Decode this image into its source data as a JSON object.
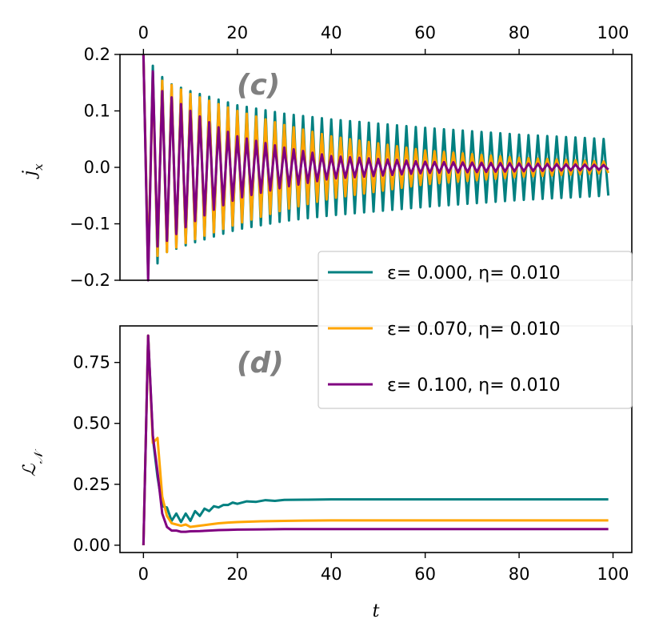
{
  "chart_data": [
    {
      "type": "line",
      "panel_label": "(c)",
      "xlabel": "",
      "ylabel": "j_x",
      "xlim": [
        -5,
        104
      ],
      "ylim": [
        -0.2,
        0.2
      ],
      "xticks": [
        0,
        20,
        40,
        60,
        80,
        100
      ],
      "xtick_labels_top": [
        "0",
        "20",
        "40",
        "60",
        "80",
        "100"
      ],
      "yticks": [
        -0.2,
        -0.1,
        0.0,
        0.1,
        0.2
      ],
      "ytick_labels": [
        "−0.2",
        "−0.1",
        "0.0",
        "0.1",
        "0.2"
      ],
      "grid": false,
      "oscillation_period": 2,
      "x_range": [
        0,
        99
      ],
      "series": [
        {
          "name": "ε=  0.000, η= 0.010",
          "color": "#008080",
          "envelope_t": [
            0,
            2,
            5,
            10,
            20,
            30,
            40,
            60,
            80,
            99
          ],
          "envelope_amplitude": [
            0.2,
            0.18,
            0.15,
            0.135,
            0.11,
            0.095,
            0.085,
            0.07,
            0.058,
            0.05
          ]
        },
        {
          "name": "ε=  0.070, η= 0.010",
          "color": "#FFA500",
          "envelope_t": [
            0,
            2,
            5,
            10,
            20,
            30,
            40,
            60,
            80,
            99
          ],
          "envelope_amplitude": [
            0.2,
            0.16,
            0.15,
            0.13,
            0.1,
            0.075,
            0.055,
            0.03,
            0.017,
            0.01
          ]
        },
        {
          "name": "ε=  0.100, η= 0.010",
          "color": "#800080",
          "envelope_t": [
            0,
            1,
            3,
            5,
            10,
            15,
            20,
            30,
            40,
            60,
            80,
            99
          ],
          "envelope_amplitude": [
            0.2,
            0.2,
            0.14,
            0.13,
            0.1,
            0.075,
            0.055,
            0.035,
            0.02,
            0.01,
            0.007,
            0.004
          ]
        }
      ]
    },
    {
      "type": "line",
      "panel_label": "(d)",
      "xlabel": "t",
      "ylabel": "L_N",
      "xlim": [
        -5,
        104
      ],
      "ylim": [
        -0.03,
        0.9
      ],
      "xticks": [
        0,
        20,
        40,
        60,
        80,
        100
      ],
      "xtick_labels": [
        "0",
        "20",
        "40",
        "60",
        "80",
        "100"
      ],
      "yticks": [
        0.0,
        0.25,
        0.5,
        0.75
      ],
      "ytick_labels": [
        "0.00",
        "0.25",
        "0.50",
        "0.75"
      ],
      "grid": false,
      "series": [
        {
          "name": "ε=  0.000, η= 0.010",
          "color": "#008080",
          "x": [
            0,
            1,
            2,
            3,
            4,
            5,
            6,
            7,
            8,
            9,
            10,
            11,
            12,
            13,
            14,
            15,
            16,
            17,
            18,
            19,
            20,
            22,
            24,
            26,
            28,
            30,
            35,
            40,
            50,
            60,
            70,
            80,
            90,
            99
          ],
          "y": [
            0.0,
            0.86,
            0.44,
            0.28,
            0.16,
            0.155,
            0.1,
            0.13,
            0.095,
            0.13,
            0.1,
            0.14,
            0.12,
            0.15,
            0.14,
            0.16,
            0.155,
            0.165,
            0.165,
            0.175,
            0.17,
            0.18,
            0.178,
            0.185,
            0.182,
            0.186,
            0.187,
            0.188,
            0.188,
            0.188,
            0.188,
            0.188,
            0.188,
            0.188
          ]
        },
        {
          "name": "ε=  0.070, η= 0.010",
          "color": "#FFA500",
          "x": [
            0,
            1,
            2,
            3,
            4,
            5,
            6,
            7,
            8,
            9,
            10,
            12,
            14,
            16,
            18,
            20,
            25,
            30,
            35,
            40,
            50,
            60,
            70,
            80,
            90,
            99
          ],
          "y": [
            0.0,
            0.86,
            0.42,
            0.44,
            0.2,
            0.12,
            0.09,
            0.085,
            0.08,
            0.085,
            0.075,
            0.08,
            0.085,
            0.09,
            0.093,
            0.095,
            0.098,
            0.1,
            0.101,
            0.102,
            0.102,
            0.102,
            0.102,
            0.102,
            0.102,
            0.102
          ]
        },
        {
          "name": "ε=  0.100, η= 0.010",
          "color": "#800080",
          "x": [
            0,
            1,
            2,
            3,
            4,
            5,
            6,
            7,
            8,
            9,
            10,
            12,
            14,
            16,
            18,
            20,
            25,
            30,
            40,
            50,
            60,
            70,
            80,
            90,
            99
          ],
          "y": [
            0.0,
            0.86,
            0.45,
            0.3,
            0.13,
            0.075,
            0.06,
            0.06,
            0.055,
            0.055,
            0.057,
            0.058,
            0.06,
            0.062,
            0.063,
            0.064,
            0.065,
            0.066,
            0.066,
            0.066,
            0.066,
            0.066,
            0.066,
            0.066,
            0.066
          ]
        }
      ]
    }
  ],
  "legend": {
    "placement": "right, between panels",
    "entries": [
      {
        "label": "ε=  0.000, η= 0.010",
        "color": "#008080"
      },
      {
        "label": "ε=  0.070, η= 0.010",
        "color": "#FFA500"
      },
      {
        "label": "ε=  0.100, η= 0.010",
        "color": "#800080"
      }
    ]
  }
}
